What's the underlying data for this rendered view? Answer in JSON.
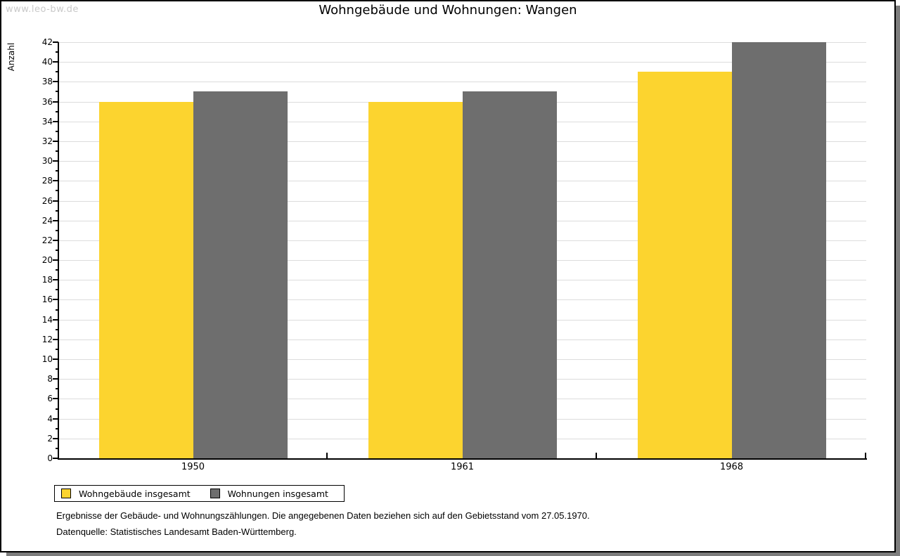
{
  "watermark": "www.leo-bw.de",
  "title": "Wohngebäude und Wohnungen: Wangen",
  "chart_data": {
    "type": "bar",
    "title": "Wohngebäude und Wohnungen: Wangen",
    "categories": [
      "1950",
      "1961",
      "1968"
    ],
    "series": [
      {
        "name": "Wohngebäude insgesamt",
        "color": "#FCD42F",
        "values": [
          36,
          36,
          39
        ]
      },
      {
        "name": "Wohnungen insgesamt",
        "color": "#6E6E6E",
        "values": [
          37,
          37,
          42
        ]
      }
    ],
    "xlabel": "",
    "ylabel": "Anzahl",
    "ylim": [
      0,
      42
    ],
    "ytick_step": 2,
    "grid": true,
    "gridline_color": "#DCDCDC",
    "legend_position": "bottom-left"
  },
  "footer": {
    "line1": "Ergebnisse der Gebäude- und Wohnungszählungen. Die angegebenen Daten beziehen sich auf den Gebietsstand vom 27.05.1970.",
    "line2": "Datenquelle: Statistisches Landesamt Baden-Württemberg."
  }
}
